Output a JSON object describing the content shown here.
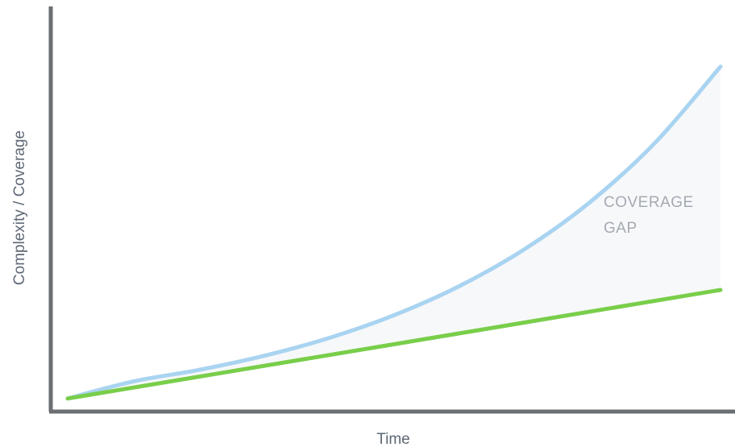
{
  "chart_data": {
    "type": "line",
    "title": "",
    "xlabel": "Time",
    "ylabel": "Complexity / Coverage",
    "xlim": [
      0,
      100
    ],
    "ylim": [
      0,
      100
    ],
    "grid": false,
    "legend": "none",
    "series": [
      {
        "key": "complexity",
        "color": "#a9d4f1",
        "x": [
          0,
          10,
          20,
          30,
          40,
          50,
          60,
          70,
          80,
          90,
          100
        ],
        "y": [
          5,
          10.8,
          14.7,
          19.5,
          25.6,
          33.4,
          43.3,
          55.9,
          71.9,
          92.2,
          118.1
        ]
      },
      {
        "key": "coverage",
        "color": "#79ce4a",
        "x": [
          0,
          100
        ],
        "y": [
          5,
          42
        ]
      }
    ],
    "annotations": [
      {
        "text_lines": [
          "COVERAGE",
          "GAP"
        ],
        "region": "between-series-right"
      }
    ],
    "gap_fill_color": "#f7f8fa",
    "axis_color": "#6b6e72"
  }
}
